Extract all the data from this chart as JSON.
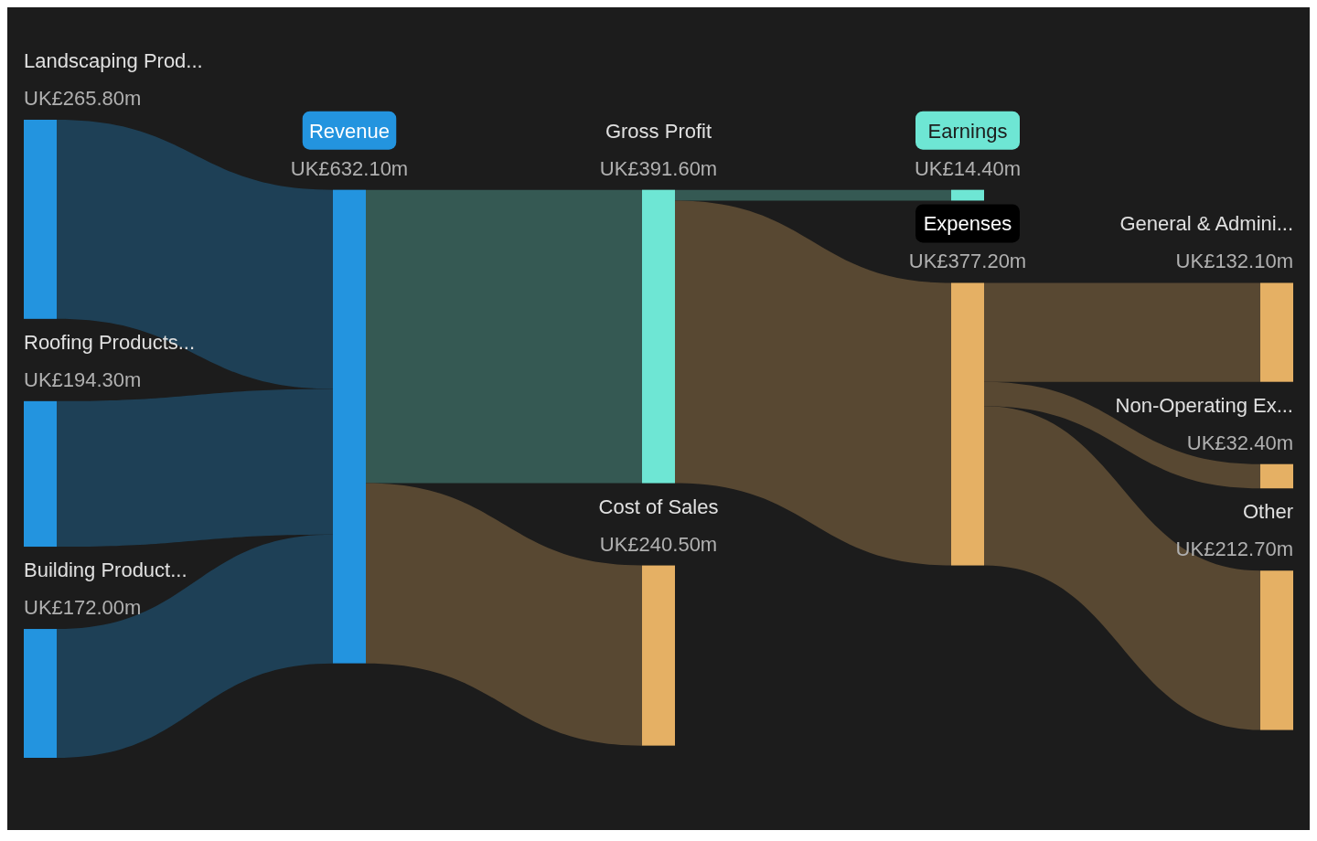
{
  "chart_data": {
    "type": "other",
    "categories": [
      "Landscaping Prod...",
      "Roofing Products...",
      "Building Product...",
      "Revenue",
      "Gross Profit",
      "Cost of Sales",
      "Earnings",
      "Expenses",
      "General & Admini...",
      "Non-Operating Ex...",
      "Other"
    ],
    "values": [
      265800000,
      194300000,
      172000000,
      632100000,
      391600000,
      240500000,
      14400000,
      377200000,
      132100000,
      32400000,
      212700000
    ],
    "value_labels": [
      "UK£265.80m",
      "UK£194.30m",
      "UK£172.00m",
      "UK£632.10m",
      "UK£391.60m",
      "UK£240.50m",
      "UK£14.40m",
      "UK£377.20m",
      "UK£132.10m",
      "UK£32.40m",
      "UK£212.70m"
    ],
    "colors": [
      "#2394df",
      "#2394df",
      "#2394df",
      "#2394df",
      "#6ee6d4",
      "#e5b064",
      "#6ee6d4",
      "#e5b064",
      "#e5b064",
      "#e5b064",
      "#e5b064"
    ]
  }
}
